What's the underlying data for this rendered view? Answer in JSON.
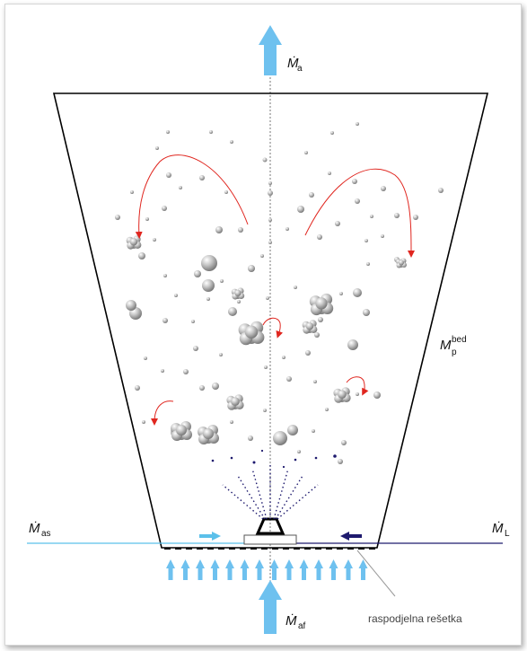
{
  "labels": {
    "air_out": {
      "main": "Ṁ",
      "sub": "a"
    },
    "bed_mass": {
      "main": "M",
      "sub": "p",
      "sup": "bed"
    },
    "solids_in": {
      "main": "Ṁ",
      "sub": "as"
    },
    "liquid_in": {
      "main": "Ṁ",
      "sub": "L"
    },
    "air_feed": {
      "main": "Ṁ",
      "sub": "af"
    },
    "distributor": "raspodjelna rešetka"
  },
  "colors": {
    "air_arrow": "#6ec1ef",
    "solids_line": "#5bc0ea",
    "liquid_line": "#1e1a6e",
    "recirculation_arrow": "#e0261f",
    "spray_dots": "#1e1a6e",
    "particles": "#a9a9a9",
    "vessel": "#000000"
  }
}
